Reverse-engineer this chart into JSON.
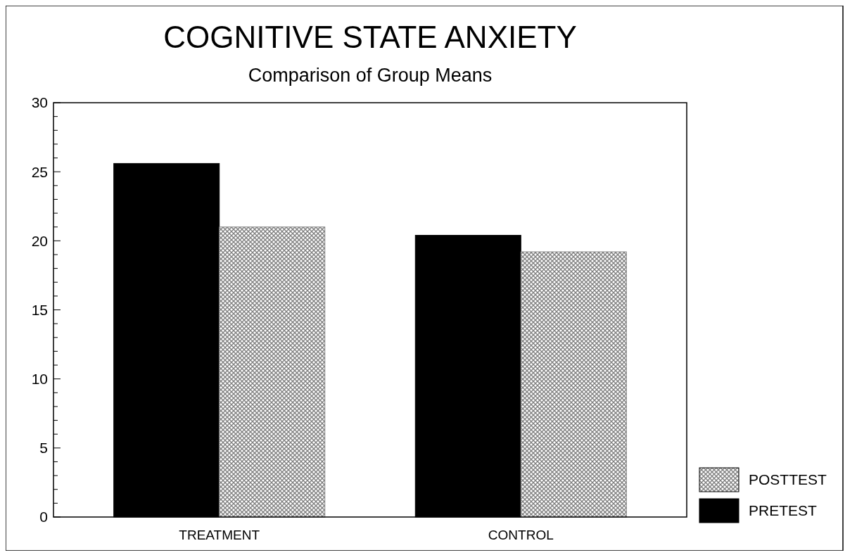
{
  "chart_data": {
    "type": "bar",
    "title": "COGNITIVE STATE ANXIETY",
    "subtitle": "Comparison of Group Means",
    "categories": [
      "TREATMENT",
      "CONTROL"
    ],
    "series": [
      {
        "name": "PRETEST",
        "color": "#000000",
        "values": [
          25.6,
          20.4
        ]
      },
      {
        "name": "POSTTEST",
        "color": "#808080",
        "values": [
          21.0,
          19.2
        ]
      }
    ],
    "ylim": [
      0,
      30
    ],
    "yticks": [
      0,
      5,
      10,
      15,
      20,
      25,
      30
    ],
    "grid": false,
    "legend": "bottom right"
  }
}
